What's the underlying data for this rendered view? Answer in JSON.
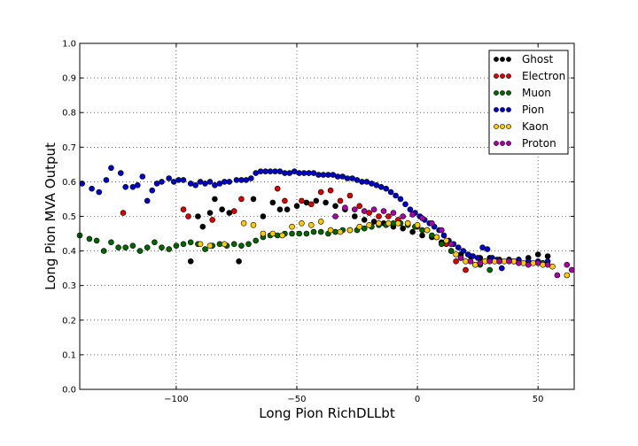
{
  "chart_data": {
    "type": "scatter",
    "title": "",
    "xlabel": "Long Pion RichDLLbt",
    "ylabel": "Long Pion MVA Output",
    "xlim": [
      -140,
      65
    ],
    "ylim": [
      0.0,
      1.0
    ],
    "xticks": [
      -100,
      -50,
      0,
      50
    ],
    "xtick_labels": [
      "−100",
      "−50",
      "0",
      "50"
    ],
    "yticks": [
      0.0,
      0.1,
      0.2,
      0.3,
      0.4,
      0.5,
      0.6,
      0.7,
      0.8,
      0.9,
      1.0
    ],
    "ytick_labels": [
      "0.0",
      "0.1",
      "0.2",
      "0.3",
      "0.4",
      "0.5",
      "0.6",
      "0.7",
      "0.8",
      "0.9",
      "1.0"
    ],
    "grid": true,
    "legend_position": "top-right",
    "series": [
      {
        "name": "Ghost",
        "color": "#000000",
        "points": [
          [
            -94,
            0.37
          ],
          [
            -91,
            0.5
          ],
          [
            -89,
            0.47
          ],
          [
            -86,
            0.51
          ],
          [
            -84,
            0.55
          ],
          [
            -81,
            0.52
          ],
          [
            -78,
            0.51
          ],
          [
            -74,
            0.37
          ],
          [
            -68,
            0.55
          ],
          [
            -64,
            0.5
          ],
          [
            -60,
            0.54
          ],
          [
            -57,
            0.52
          ],
          [
            -54,
            0.52
          ],
          [
            -50,
            0.53
          ],
          [
            -46,
            0.54
          ],
          [
            -42,
            0.545
          ],
          [
            -38,
            0.54
          ],
          [
            -34,
            0.53
          ],
          [
            -30,
            0.52
          ],
          [
            -26,
            0.5
          ],
          [
            -22,
            0.49
          ],
          [
            -18,
            0.485
          ],
          [
            -14,
            0.48
          ],
          [
            -10,
            0.47
          ],
          [
            -6,
            0.465
          ],
          [
            -2,
            0.455
          ],
          [
            2,
            0.445
          ],
          [
            6,
            0.44
          ],
          [
            10,
            0.425
          ],
          [
            14,
            0.4
          ],
          [
            18,
            0.39
          ],
          [
            22,
            0.385
          ],
          [
            26,
            0.38
          ],
          [
            30,
            0.38
          ],
          [
            34,
            0.375
          ],
          [
            38,
            0.375
          ],
          [
            42,
            0.375
          ],
          [
            46,
            0.38
          ],
          [
            50,
            0.39
          ],
          [
            54,
            0.385
          ]
        ]
      },
      {
        "name": "Electron",
        "color": "#dd0000",
        "points": [
          [
            -122,
            0.51
          ],
          [
            -97,
            0.52
          ],
          [
            -95,
            0.5
          ],
          [
            -85,
            0.49
          ],
          [
            -76,
            0.515
          ],
          [
            -73,
            0.55
          ],
          [
            -58,
            0.58
          ],
          [
            -55,
            0.545
          ],
          [
            -48,
            0.545
          ],
          [
            -44,
            0.535
          ],
          [
            -40,
            0.57
          ],
          [
            -36,
            0.575
          ],
          [
            -32,
            0.545
          ],
          [
            -28,
            0.56
          ],
          [
            -24,
            0.53
          ],
          [
            -20,
            0.51
          ],
          [
            -16,
            0.5
          ],
          [
            -12,
            0.5
          ],
          [
            -8,
            0.49
          ],
          [
            -4,
            0.48
          ],
          [
            0,
            0.47
          ],
          [
            4,
            0.46
          ],
          [
            8,
            0.44
          ],
          [
            12,
            0.42
          ],
          [
            16,
            0.37
          ],
          [
            20,
            0.345
          ],
          [
            24,
            0.36
          ],
          [
            28,
            0.37
          ],
          [
            34,
            0.37
          ],
          [
            40,
            0.37
          ],
          [
            46,
            0.37
          ],
          [
            52,
            0.365
          ]
        ]
      },
      {
        "name": "Muon",
        "color": "#006600",
        "points": [
          [
            -140,
            0.445
          ],
          [
            -136,
            0.435
          ],
          [
            -133,
            0.43
          ],
          [
            -130,
            0.4
          ],
          [
            -127,
            0.425
          ],
          [
            -124,
            0.41
          ],
          [
            -121,
            0.41
          ],
          [
            -118,
            0.415
          ],
          [
            -115,
            0.4
          ],
          [
            -112,
            0.41
          ],
          [
            -109,
            0.425
          ],
          [
            -106,
            0.41
          ],
          [
            -103,
            0.405
          ],
          [
            -100,
            0.415
          ],
          [
            -97,
            0.42
          ],
          [
            -94,
            0.425
          ],
          [
            -91,
            0.42
          ],
          [
            -88,
            0.405
          ],
          [
            -85,
            0.415
          ],
          [
            -82,
            0.42
          ],
          [
            -79,
            0.415
          ],
          [
            -76,
            0.42
          ],
          [
            -73,
            0.415
          ],
          [
            -70,
            0.42
          ],
          [
            -67,
            0.43
          ],
          [
            -64,
            0.44
          ],
          [
            -61,
            0.445
          ],
          [
            -58,
            0.445
          ],
          [
            -55,
            0.45
          ],
          [
            -52,
            0.45
          ],
          [
            -49,
            0.45
          ],
          [
            -46,
            0.45
          ],
          [
            -43,
            0.455
          ],
          [
            -40,
            0.455
          ],
          [
            -37,
            0.45
          ],
          [
            -34,
            0.455
          ],
          [
            -31,
            0.46
          ],
          [
            -28,
            0.46
          ],
          [
            -25,
            0.46
          ],
          [
            -22,
            0.465
          ],
          [
            -19,
            0.47
          ],
          [
            -16,
            0.475
          ],
          [
            -13,
            0.475
          ],
          [
            -10,
            0.48
          ],
          [
            -7,
            0.48
          ],
          [
            -4,
            0.475
          ],
          [
            -1,
            0.47
          ],
          [
            2,
            0.46
          ],
          [
            6,
            0.445
          ],
          [
            10,
            0.42
          ],
          [
            14,
            0.4
          ],
          [
            18,
            0.38
          ],
          [
            22,
            0.37
          ],
          [
            26,
            0.36
          ],
          [
            30,
            0.345
          ],
          [
            34,
            0.37
          ],
          [
            40,
            0.37
          ],
          [
            46,
            0.365
          ],
          [
            52,
            0.365
          ]
        ]
      },
      {
        "name": "Pion",
        "color": "#0000cc",
        "points": [
          [
            -139,
            0.595
          ],
          [
            -135,
            0.58
          ],
          [
            -132,
            0.57
          ],
          [
            -129,
            0.605
          ],
          [
            -127,
            0.64
          ],
          [
            -123,
            0.625
          ],
          [
            -121,
            0.585
          ],
          [
            -118,
            0.585
          ],
          [
            -116,
            0.59
          ],
          [
            -114,
            0.615
          ],
          [
            -112,
            0.545
          ],
          [
            -110,
            0.575
          ],
          [
            -108,
            0.595
          ],
          [
            -106,
            0.6
          ],
          [
            -103,
            0.61
          ],
          [
            -101,
            0.6
          ],
          [
            -99,
            0.605
          ],
          [
            -97,
            0.605
          ],
          [
            -94,
            0.595
          ],
          [
            -92,
            0.59
          ],
          [
            -90,
            0.6
          ],
          [
            -88,
            0.595
          ],
          [
            -86,
            0.6
          ],
          [
            -84,
            0.59
          ],
          [
            -82,
            0.595
          ],
          [
            -80,
            0.6
          ],
          [
            -78,
            0.6
          ],
          [
            -75,
            0.605
          ],
          [
            -73,
            0.605
          ],
          [
            -71,
            0.605
          ],
          [
            -69,
            0.61
          ],
          [
            -67,
            0.625
          ],
          [
            -65,
            0.63
          ],
          [
            -63,
            0.63
          ],
          [
            -61,
            0.63
          ],
          [
            -59,
            0.63
          ],
          [
            -57,
            0.63
          ],
          [
            -55,
            0.625
          ],
          [
            -53,
            0.625
          ],
          [
            -51,
            0.63
          ],
          [
            -49,
            0.625
          ],
          [
            -47,
            0.625
          ],
          [
            -45,
            0.625
          ],
          [
            -43,
            0.625
          ],
          [
            -41,
            0.62
          ],
          [
            -39,
            0.62
          ],
          [
            -37,
            0.62
          ],
          [
            -35,
            0.62
          ],
          [
            -33,
            0.615
          ],
          [
            -31,
            0.615
          ],
          [
            -29,
            0.61
          ],
          [
            -27,
            0.61
          ],
          [
            -25,
            0.605
          ],
          [
            -23,
            0.6
          ],
          [
            -21,
            0.6
          ],
          [
            -19,
            0.595
          ],
          [
            -17,
            0.59
          ],
          [
            -15,
            0.585
          ],
          [
            -13,
            0.58
          ],
          [
            -11,
            0.57
          ],
          [
            -9,
            0.56
          ],
          [
            -7,
            0.55
          ],
          [
            -5,
            0.535
          ],
          [
            -3,
            0.52
          ],
          [
            -1,
            0.51
          ],
          [
            1,
            0.5
          ],
          [
            3,
            0.49
          ],
          [
            5,
            0.48
          ],
          [
            7,
            0.47
          ],
          [
            9,
            0.46
          ],
          [
            11,
            0.445
          ],
          [
            13,
            0.43
          ],
          [
            15,
            0.42
          ],
          [
            17,
            0.41
          ],
          [
            19,
            0.4
          ],
          [
            21,
            0.39
          ],
          [
            23,
            0.385
          ],
          [
            25,
            0.38
          ],
          [
            27,
            0.41
          ],
          [
            29,
            0.405
          ],
          [
            31,
            0.38
          ],
          [
            33,
            0.375
          ],
          [
            35,
            0.35
          ],
          [
            38,
            0.375
          ],
          [
            42,
            0.375
          ],
          [
            46,
            0.37
          ],
          [
            50,
            0.37
          ],
          [
            54,
            0.37
          ]
        ]
      },
      {
        "name": "Kaon",
        "color": "#ffcc00",
        "points": [
          [
            -90,
            0.42
          ],
          [
            -86,
            0.415
          ],
          [
            -80,
            0.42
          ],
          [
            -72,
            0.48
          ],
          [
            -68,
            0.475
          ],
          [
            -64,
            0.45
          ],
          [
            -60,
            0.45
          ],
          [
            -56,
            0.445
          ],
          [
            -52,
            0.47
          ],
          [
            -48,
            0.48
          ],
          [
            -44,
            0.475
          ],
          [
            -40,
            0.485
          ],
          [
            -36,
            0.46
          ],
          [
            -32,
            0.455
          ],
          [
            -28,
            0.46
          ],
          [
            -24,
            0.47
          ],
          [
            -20,
            0.475
          ],
          [
            -16,
            0.48
          ],
          [
            -12,
            0.48
          ],
          [
            -8,
            0.48
          ],
          [
            -4,
            0.48
          ],
          [
            0,
            0.475
          ],
          [
            4,
            0.46
          ],
          [
            8,
            0.44
          ],
          [
            12,
            0.43
          ],
          [
            16,
            0.39
          ],
          [
            20,
            0.37
          ],
          [
            24,
            0.36
          ],
          [
            28,
            0.37
          ],
          [
            32,
            0.37
          ],
          [
            36,
            0.37
          ],
          [
            40,
            0.37
          ],
          [
            44,
            0.365
          ],
          [
            48,
            0.365
          ],
          [
            52,
            0.36
          ],
          [
            56,
            0.355
          ],
          [
            62,
            0.33
          ]
        ]
      },
      {
        "name": "Proton",
        "color": "#aa00aa",
        "points": [
          [
            -34,
            0.5
          ],
          [
            -30,
            0.525
          ],
          [
            -26,
            0.52
          ],
          [
            -22,
            0.515
          ],
          [
            -18,
            0.52
          ],
          [
            -14,
            0.515
          ],
          [
            -10,
            0.51
          ],
          [
            -6,
            0.5
          ],
          [
            -2,
            0.505
          ],
          [
            2,
            0.495
          ],
          [
            6,
            0.48
          ],
          [
            10,
            0.46
          ],
          [
            14,
            0.42
          ],
          [
            18,
            0.38
          ],
          [
            22,
            0.37
          ],
          [
            26,
            0.365
          ],
          [
            30,
            0.37
          ],
          [
            34,
            0.37
          ],
          [
            38,
            0.37
          ],
          [
            42,
            0.365
          ],
          [
            46,
            0.36
          ],
          [
            50,
            0.365
          ],
          [
            54,
            0.36
          ],
          [
            58,
            0.33
          ],
          [
            62,
            0.36
          ],
          [
            64,
            0.345
          ]
        ]
      }
    ]
  }
}
